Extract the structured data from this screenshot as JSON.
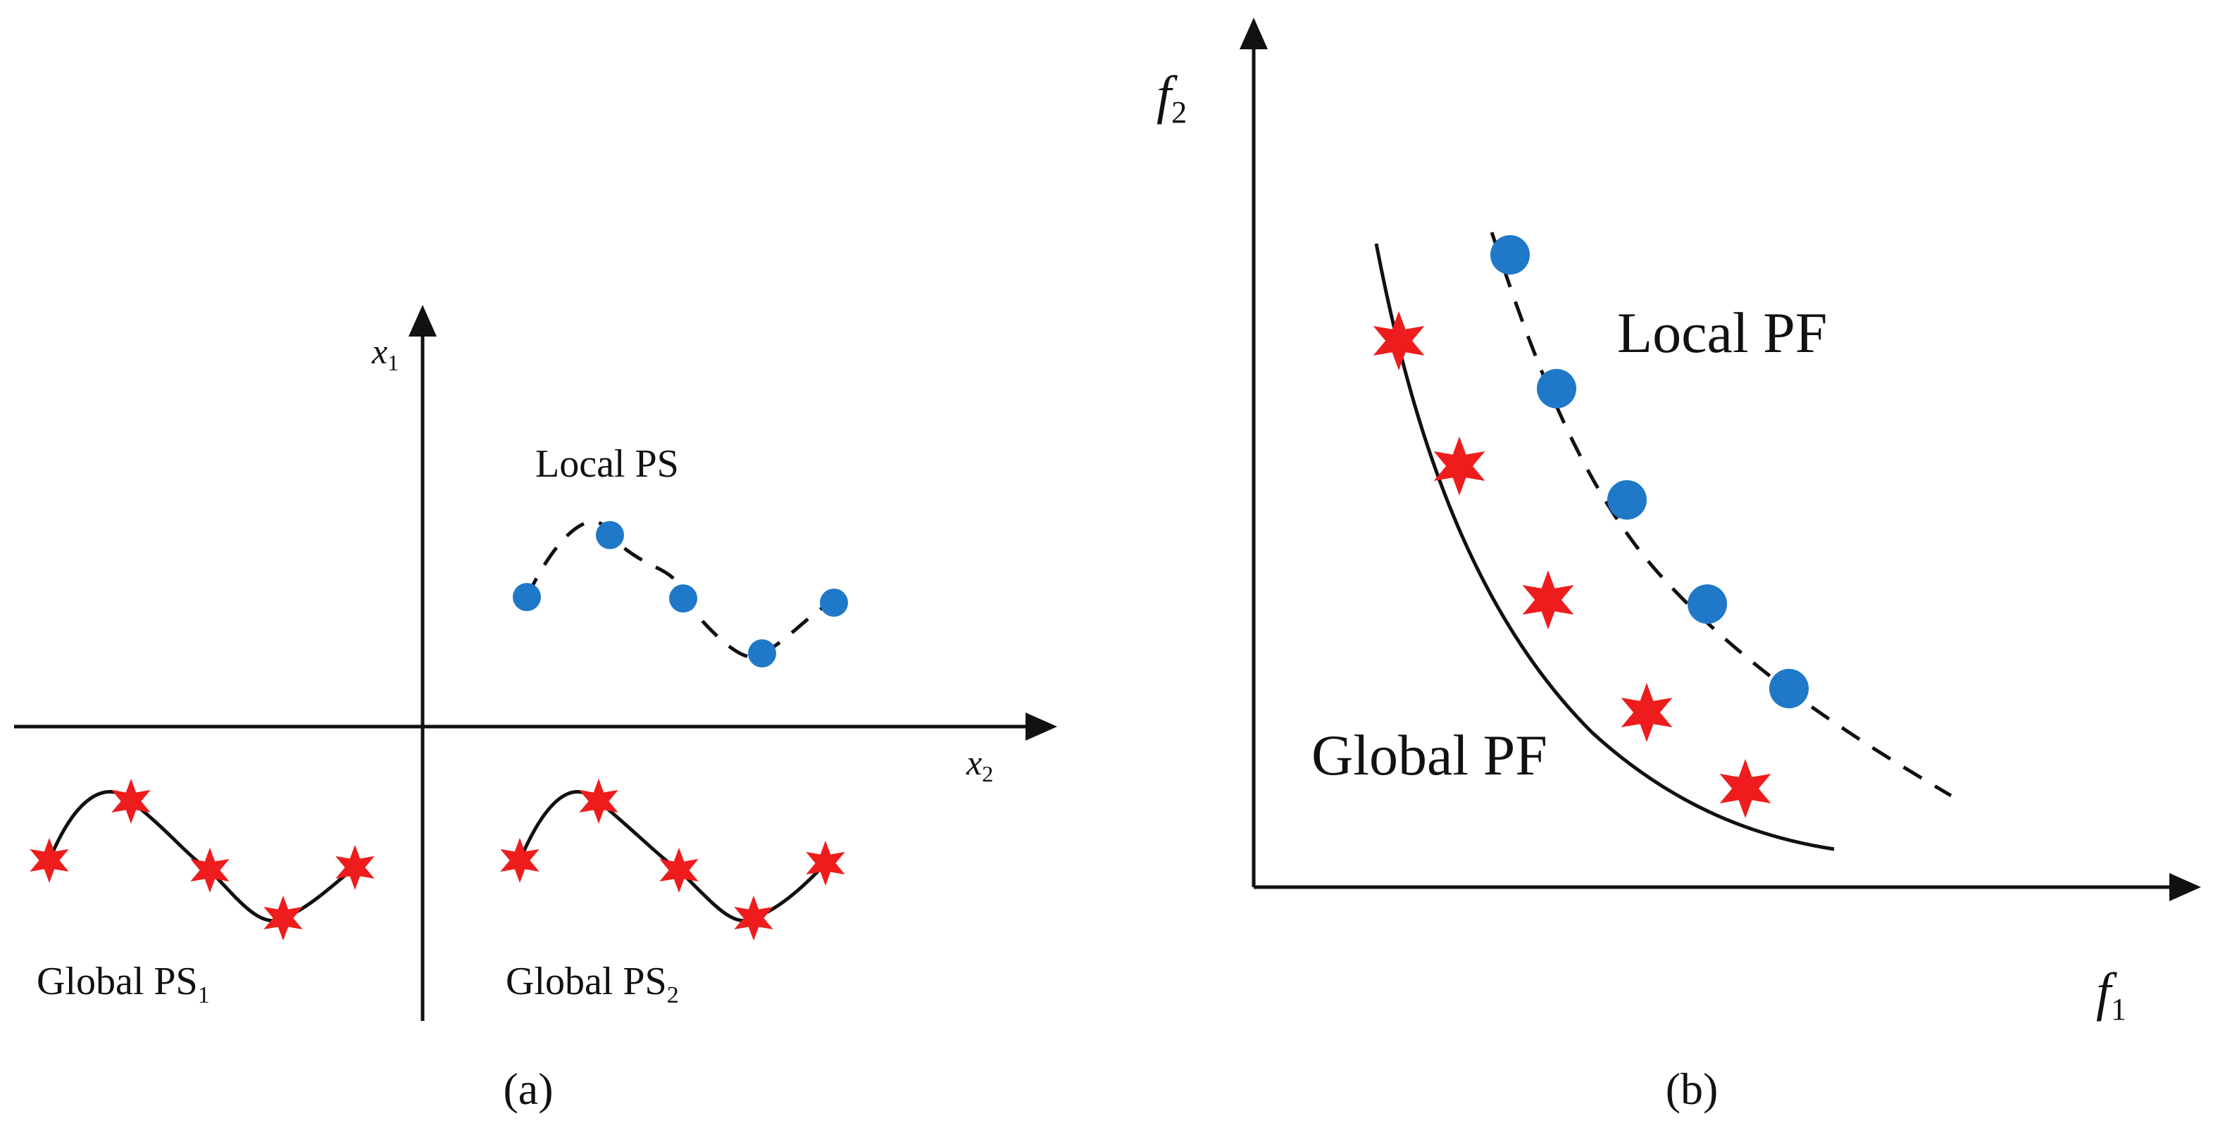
{
  "colors": {
    "global_marker": "#ee1c1c",
    "local_marker": "#1f78c8",
    "line": "#111111"
  },
  "panel_a": {
    "caption": "(a)",
    "axis_x1": {
      "base": "x",
      "sub": "1"
    },
    "axis_x2": {
      "base": "x",
      "sub": "2"
    },
    "local_label": "Local PS",
    "global1_label": {
      "text": "Global PS",
      "sub": "1"
    },
    "global2_label": {
      "text": "Global PS",
      "sub": "2"
    },
    "local_marker_icon": "circle-marker",
    "global_marker_icon": "star-marker"
  },
  "panel_b": {
    "caption": "(b)",
    "axis_f1": {
      "base": "f",
      "sub": "1"
    },
    "axis_f2": {
      "base": "f",
      "sub": "2"
    },
    "local_label": "Local PF",
    "global_label": "Global PF",
    "local_marker_icon": "circle-marker",
    "global_marker_icon": "star-marker"
  }
}
